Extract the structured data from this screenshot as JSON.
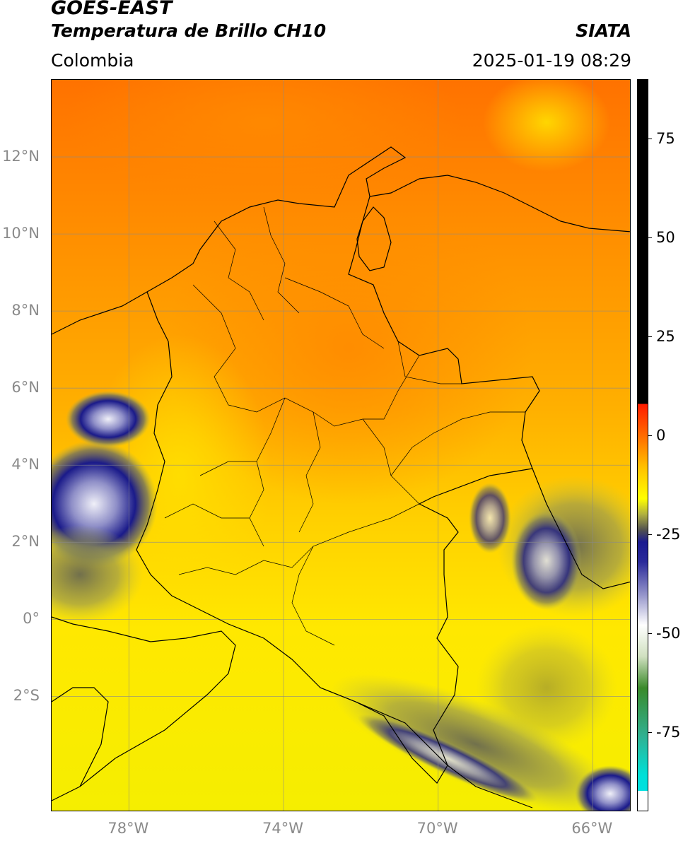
{
  "header": {
    "satellite": "GOES-EAST",
    "product": "Temperatura de Brillo CH10",
    "brand": "SIATA",
    "region": "Colombia",
    "datetime": "2025-01-19 08:29"
  },
  "map": {
    "lon_range": [
      -80,
      -65
    ],
    "lat_range": [
      -5,
      14
    ],
    "lat_ticks": [
      {
        "value": 12,
        "label": "12°N"
      },
      {
        "value": 10,
        "label": "10°N"
      },
      {
        "value": 8,
        "label": "8°N"
      },
      {
        "value": 6,
        "label": "6°N"
      },
      {
        "value": 4,
        "label": "4°N"
      },
      {
        "value": 2,
        "label": "2°N"
      },
      {
        "value": 0,
        "label": "0°"
      },
      {
        "value": -2,
        "label": "2°S"
      }
    ],
    "lon_ticks": [
      {
        "value": -78,
        "label": "78°W"
      },
      {
        "value": -74,
        "label": "74°W"
      },
      {
        "value": -70,
        "label": "70°W"
      },
      {
        "value": -66,
        "label": "66°W"
      }
    ],
    "grid": true,
    "background_colors": {
      "warm": "#ff7a00",
      "mid": "#ffb000",
      "cool": "#ffe800",
      "cloud_gray": "#8a8a5a",
      "cloud_blue": "#1a1a8a",
      "cloud_white": "#e8e8f0",
      "border": "#000000"
    }
  },
  "colorbar": {
    "range": [
      -95,
      90
    ],
    "ticks": [
      75,
      50,
      25,
      0,
      -25,
      -50,
      -75
    ],
    "tick_labels": [
      "75",
      "50",
      "25",
      "0",
      "-25",
      "-50",
      "-75"
    ],
    "stops": [
      {
        "value": 90,
        "color": "#000000"
      },
      {
        "value": 8,
        "color": "#000000"
      },
      {
        "value": 8,
        "color": "#ff1a00"
      },
      {
        "value": 0,
        "color": "#ff6a00"
      },
      {
        "value": -8,
        "color": "#ffc000"
      },
      {
        "value": -16,
        "color": "#ffff00"
      },
      {
        "value": -20,
        "color": "#b0b040"
      },
      {
        "value": -24,
        "color": "#505050"
      },
      {
        "value": -27,
        "color": "#1a1a90"
      },
      {
        "value": -32,
        "color": "#2a2a9a"
      },
      {
        "value": -40,
        "color": "#9090c8"
      },
      {
        "value": -48,
        "color": "#ffffff"
      },
      {
        "value": -56,
        "color": "#d0e0c0"
      },
      {
        "value": -64,
        "color": "#3a8a2a"
      },
      {
        "value": -76,
        "color": "#30b090"
      },
      {
        "value": -86,
        "color": "#00e0d8"
      },
      {
        "value": -90,
        "color": "#00e0e0"
      },
      {
        "value": -90,
        "color": "#ffffff"
      },
      {
        "value": -95,
        "color": "#ffffff"
      }
    ]
  }
}
